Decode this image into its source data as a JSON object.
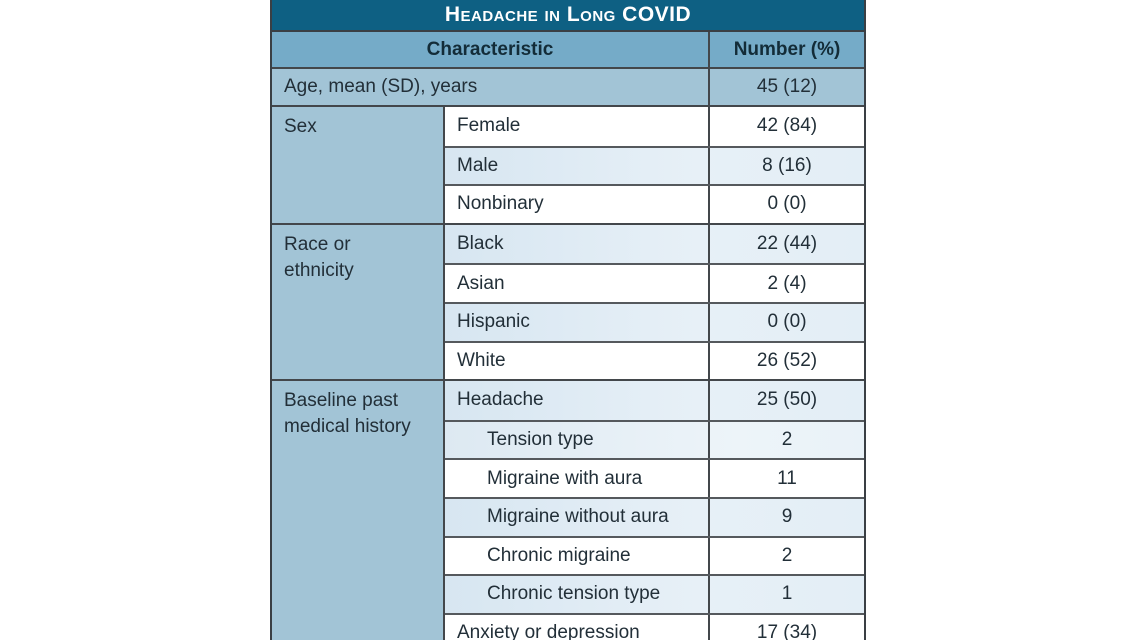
{
  "table": {
    "title": "Headache in Long COVID",
    "columns": {
      "characteristic": "Characteristic",
      "number": "Number (%)"
    },
    "age_row": {
      "label": "Age, mean (SD), years",
      "value": "45 (12)"
    },
    "groups": [
      {
        "label": "Sex",
        "rows": [
          {
            "label": "Female",
            "value": "42 (84)"
          },
          {
            "label": "Male",
            "value": "8 (16)"
          },
          {
            "label": "Nonbinary",
            "value": "0 (0)"
          }
        ]
      },
      {
        "label": "Race or ethnicity",
        "rows": [
          {
            "label": "Black",
            "value": "22 (44)"
          },
          {
            "label": "Asian",
            "value": "2 (4)"
          },
          {
            "label": "Hispanic",
            "value": "0 (0)"
          },
          {
            "label": "White",
            "value": "26 (52)"
          }
        ]
      },
      {
        "label": "Baseline past medical history",
        "rows": [
          {
            "label": "Headache",
            "value": "25 (50)"
          },
          {
            "label": "Tension type",
            "value": "2",
            "indent": true
          },
          {
            "label": "Migraine with aura",
            "value": "11",
            "indent": true
          },
          {
            "label": "Migraine without aura",
            "value": "9",
            "indent": true
          },
          {
            "label": "Chronic migraine",
            "value": "2",
            "indent": true
          },
          {
            "label": "Chronic tension type",
            "value": "1",
            "indent": true
          },
          {
            "label": "Anxiety or depression",
            "value": "17 (34)"
          }
        ]
      }
    ],
    "colors": {
      "title_bg": "#0e6083",
      "header_bg": "#75abc8",
      "group_bg": "#a2c4d6",
      "light_row_bg": "#d7e6f1",
      "border": "#43474b",
      "title_text": "#ffffff",
      "body_text": "#222f38"
    }
  }
}
